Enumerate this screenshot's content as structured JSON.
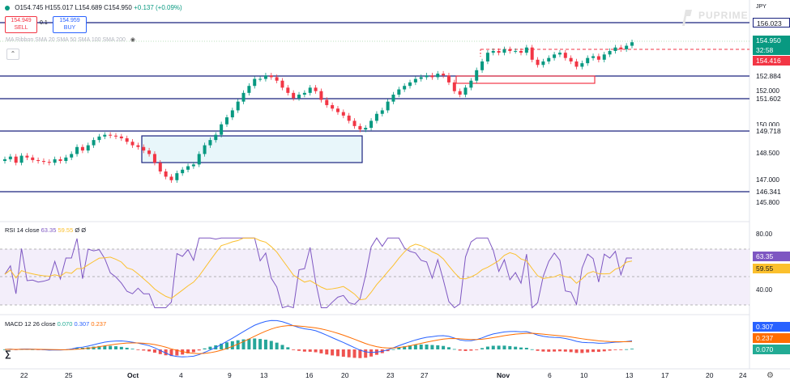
{
  "symbol_bar": {
    "open": "O154.745",
    "high": "H155.017",
    "low": "L154.689",
    "close": "C154.950",
    "change": "+0.137 (+0.09%)"
  },
  "trade": {
    "sell_price": "154.949",
    "sell_label": "SELL",
    "spread": "0.1",
    "buy_price": "154.959",
    "buy_label": "BUY"
  },
  "indicator_ribbon": "MA Ribbon SMA 20 SMA 50 SMA 100 SMA 200",
  "brand": "PUPRIME",
  "currency": "JPY",
  "price_axis": {
    "ticks": [
      "152.000",
      "150.000",
      "148.500",
      "147.000",
      "145.800"
    ],
    "labels": [
      {
        "value": "156.023",
        "bg": "#ffffff",
        "fg": "#131722",
        "border": "#1a237e"
      },
      {
        "value": "154.950",
        "bg": "#089981",
        "fg": "#ffffff"
      },
      {
        "value": "32:58",
        "bg": "#089981",
        "fg": "#ffffff"
      },
      {
        "value": "154.416",
        "bg": "#f23645",
        "fg": "#ffffff"
      },
      {
        "value": "152.884",
        "bg": "#ffffff",
        "fg": "#131722"
      },
      {
        "value": "151.602",
        "bg": "#ffffff",
        "fg": "#131722"
      },
      {
        "value": "149.718",
        "bg": "#ffffff",
        "fg": "#131722"
      },
      {
        "value": "146.341",
        "bg": "#ffffff",
        "fg": "#131722"
      }
    ]
  },
  "rsi": {
    "title": "RSI 14 close",
    "value1": "63.35",
    "value2": "59.55",
    "value3": "Ø Ø",
    "ticks": [
      "80.00",
      "40.00"
    ],
    "labels": [
      {
        "value": "63.35",
        "bg": "#7e57c2",
        "fg": "#ffffff"
      },
      {
        "value": "59.55",
        "bg": "#fbc02d",
        "fg": "#131722"
      }
    ]
  },
  "macd": {
    "title": "MACD 12 26 close",
    "value1": "0.070",
    "value2": "0.307",
    "value3": "0.237",
    "labels": [
      {
        "value": "0.307",
        "bg": "#2962ff",
        "fg": "#ffffff"
      },
      {
        "value": "0.237",
        "bg": "#ff6d00",
        "fg": "#ffffff"
      },
      {
        "value": "0.070",
        "bg": "#22ab94",
        "fg": "#ffffff"
      }
    ]
  },
  "time_axis": [
    "22",
    "25",
    "Oct",
    "4",
    "9",
    "13",
    "16",
    "20",
    "23",
    "27",
    "Nov",
    "6",
    "10",
    "13",
    "17",
    "20",
    "24"
  ],
  "colors": {
    "up": "#089981",
    "down": "#f23645",
    "hline": "#1a237e",
    "rsi": "#7e57c2",
    "rsi_ma": "#fbc02d",
    "macd": "#2962ff",
    "signal": "#ff6d00",
    "hist_up": "#26a69a",
    "hist_down": "#ef5350"
  },
  "chart_data": {
    "type": "candlestick",
    "symbol_currency": "JPY",
    "horizontal_levels": [
      156.023,
      152.884,
      151.602,
      149.718,
      146.341
    ],
    "entry_level": 154.416,
    "last_price": 154.95,
    "rsi_last": 63.35,
    "rsi_ma_last": 59.55,
    "macd_last": 0.307,
    "signal_last": 0.237,
    "hist_last": 0.07,
    "closes": [
      148.2,
      148.35,
      148.0,
      148.4,
      148.3,
      148.15,
      148.1,
      148.05,
      148.0,
      148.2,
      148.1,
      148.3,
      148.5,
      148.9,
      148.7,
      149.0,
      149.3,
      149.5,
      149.6,
      149.55,
      149.5,
      149.4,
      149.2,
      149.0,
      148.9,
      148.7,
      148.5,
      148.0,
      147.5,
      147.2,
      147.0,
      147.4,
      147.6,
      147.8,
      147.9,
      148.5,
      149.0,
      149.3,
      149.6,
      150.2,
      150.6,
      151.0,
      151.5,
      152.0,
      152.4,
      152.8,
      152.8,
      153.0,
      152.9,
      152.7,
      152.3,
      152.0,
      151.7,
      151.9,
      152.0,
      152.3,
      152.1,
      151.6,
      151.3,
      151.1,
      150.9,
      150.7,
      150.4,
      150.1,
      149.9,
      150.0,
      150.4,
      150.8,
      151.0,
      151.5,
      151.9,
      152.2,
      152.4,
      152.6,
      152.8,
      152.9,
      153.0,
      152.9,
      153.1,
      153.0,
      152.6,
      152.1,
      151.9,
      152.3,
      152.7,
      153.3,
      153.8,
      154.3,
      154.4,
      154.3,
      154.5,
      154.4,
      154.4,
      154.3,
      154.6,
      153.9,
      153.6,
      153.8,
      154.0,
      154.2,
      154.3,
      154.0,
      153.8,
      153.5,
      153.7,
      154.0,
      154.1,
      153.9,
      154.2,
      154.4,
      154.6,
      154.5,
      154.7,
      154.9
    ]
  }
}
